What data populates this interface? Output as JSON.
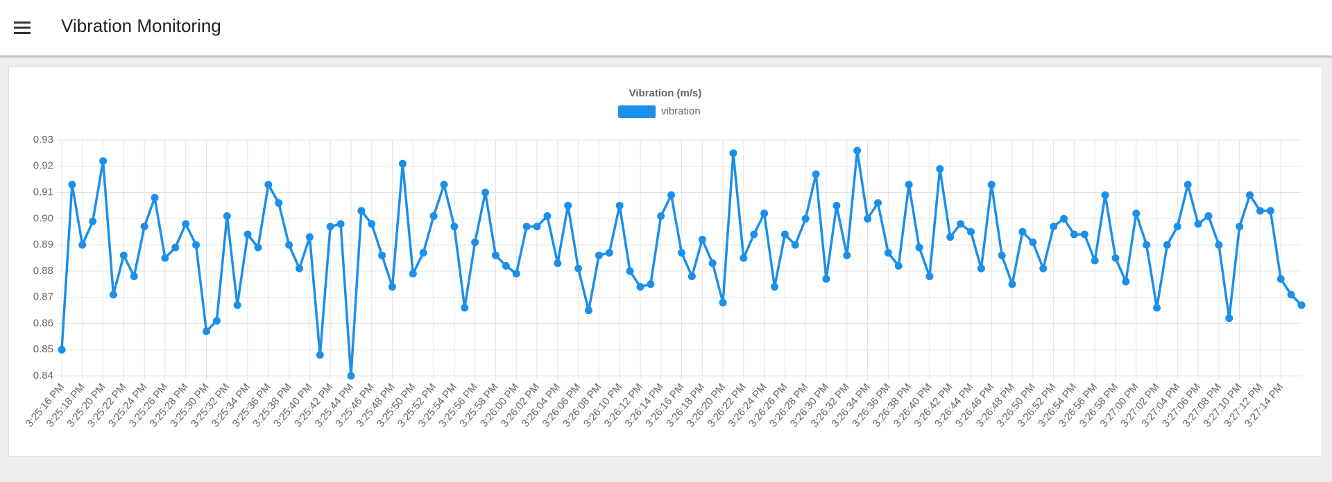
{
  "header": {
    "title": "Vibration Monitoring"
  },
  "chart_data": {
    "type": "line",
    "title": "Vibration (m/s)",
    "categories": [
      "3:25:16 PM",
      null,
      "3:25:18 PM",
      null,
      "3:25:20 PM",
      null,
      "3:25:22 PM",
      null,
      "3:25:24 PM",
      null,
      "3:25:26 PM",
      null,
      "3:25:28 PM",
      null,
      "3:25:30 PM",
      null,
      "3:25:32 PM",
      null,
      "3:25:34 PM",
      null,
      "3:25:36 PM",
      null,
      "3:25:38 PM",
      null,
      "3:25:40 PM",
      null,
      "3:25:42 PM",
      null,
      "3:25:44 PM",
      null,
      "3:25:46 PM",
      null,
      "3:25:48 PM",
      null,
      "3:25:50 PM",
      null,
      "3:25:52 PM",
      null,
      "3:25:54 PM",
      null,
      "3:25:56 PM",
      null,
      "3:25:58 PM",
      null,
      "3:26:00 PM",
      null,
      "3:26:02 PM",
      null,
      "3:26:04 PM",
      null,
      "3:26:06 PM",
      null,
      "3:26:08 PM",
      null,
      "3:26:10 PM",
      null,
      "3:26:12 PM",
      null,
      "3:26:14 PM",
      null,
      "3:26:16 PM",
      null,
      "3:26:18 PM",
      null,
      "3:26:20 PM",
      null,
      "3:26:22 PM",
      null,
      "3:26:24 PM",
      null,
      "3:26:26 PM",
      null,
      "3:26:28 PM",
      null,
      "3:26:30 PM",
      null,
      "3:26:32 PM",
      null,
      "3:26:34 PM",
      null,
      "3:26:36 PM",
      null,
      "3:26:38 PM",
      null,
      "3:26:40 PM",
      null,
      "3:26:42 PM",
      null,
      "3:26:44 PM",
      null,
      "3:26:46 PM",
      null,
      "3:26:48 PM",
      null,
      "3:26:50 PM",
      null,
      "3:26:52 PM",
      null,
      "3:26:54 PM",
      null,
      "3:26:56 PM",
      null,
      "3:26:58 PM",
      null,
      "3:27:00 PM",
      null,
      "3:27:02 PM",
      null,
      "3:27:04 PM",
      null,
      "3:27:06 PM",
      null,
      "3:27:08 PM",
      null,
      "3:27:10 PM",
      null,
      "3:27:12 PM",
      null,
      "3:27:14 PM",
      null,
      null
    ],
    "series": [
      {
        "name": "vibration",
        "color": "#1b8fea",
        "values": [
          0.85,
          0.913,
          0.89,
          0.899,
          0.922,
          0.871,
          0.886,
          0.878,
          0.897,
          0.908,
          0.885,
          0.889,
          0.898,
          0.89,
          0.857,
          0.861,
          0.901,
          0.867,
          0.894,
          0.889,
          0.913,
          0.906,
          0.89,
          0.881,
          0.893,
          0.848,
          0.897,
          0.898,
          0.84,
          0.903,
          0.898,
          0.886,
          0.874,
          0.921,
          0.879,
          0.887,
          0.901,
          0.913,
          0.897,
          0.866,
          0.891,
          0.91,
          0.886,
          0.882,
          0.879,
          0.897,
          0.897,
          0.901,
          0.883,
          0.905,
          0.881,
          0.865,
          0.886,
          0.887,
          0.905,
          0.88,
          0.874,
          0.875,
          0.901,
          0.909,
          0.887,
          0.878,
          0.892,
          0.883,
          0.868,
          0.925,
          0.885,
          0.894,
          0.902,
          0.874,
          0.894,
          0.89,
          0.9,
          0.917,
          0.877,
          0.905,
          0.886,
          0.926,
          0.9,
          0.906,
          0.887,
          0.882,
          0.913,
          0.889,
          0.878,
          0.919,
          0.893,
          0.898,
          0.895,
          0.881,
          0.913,
          0.886,
          0.875,
          0.895,
          0.891,
          0.881,
          0.897,
          0.9,
          0.894,
          0.894,
          0.884,
          0.909,
          0.885,
          0.876,
          0.902,
          0.89,
          0.866,
          0.89,
          0.897,
          0.913,
          0.898,
          0.901,
          0.89,
          0.862,
          0.897,
          0.909,
          0.903,
          0.903,
          0.877,
          0.871,
          0.867
        ]
      }
    ],
    "ylim": [
      0.84,
      0.93
    ],
    "yticks": [
      0.84,
      0.85,
      0.86,
      0.87,
      0.88,
      0.89,
      {
        "value": 0.9,
        "label": "0.90"
      },
      0.91,
      0.92,
      0.93
    ],
    "grid": true,
    "legend": "top"
  }
}
